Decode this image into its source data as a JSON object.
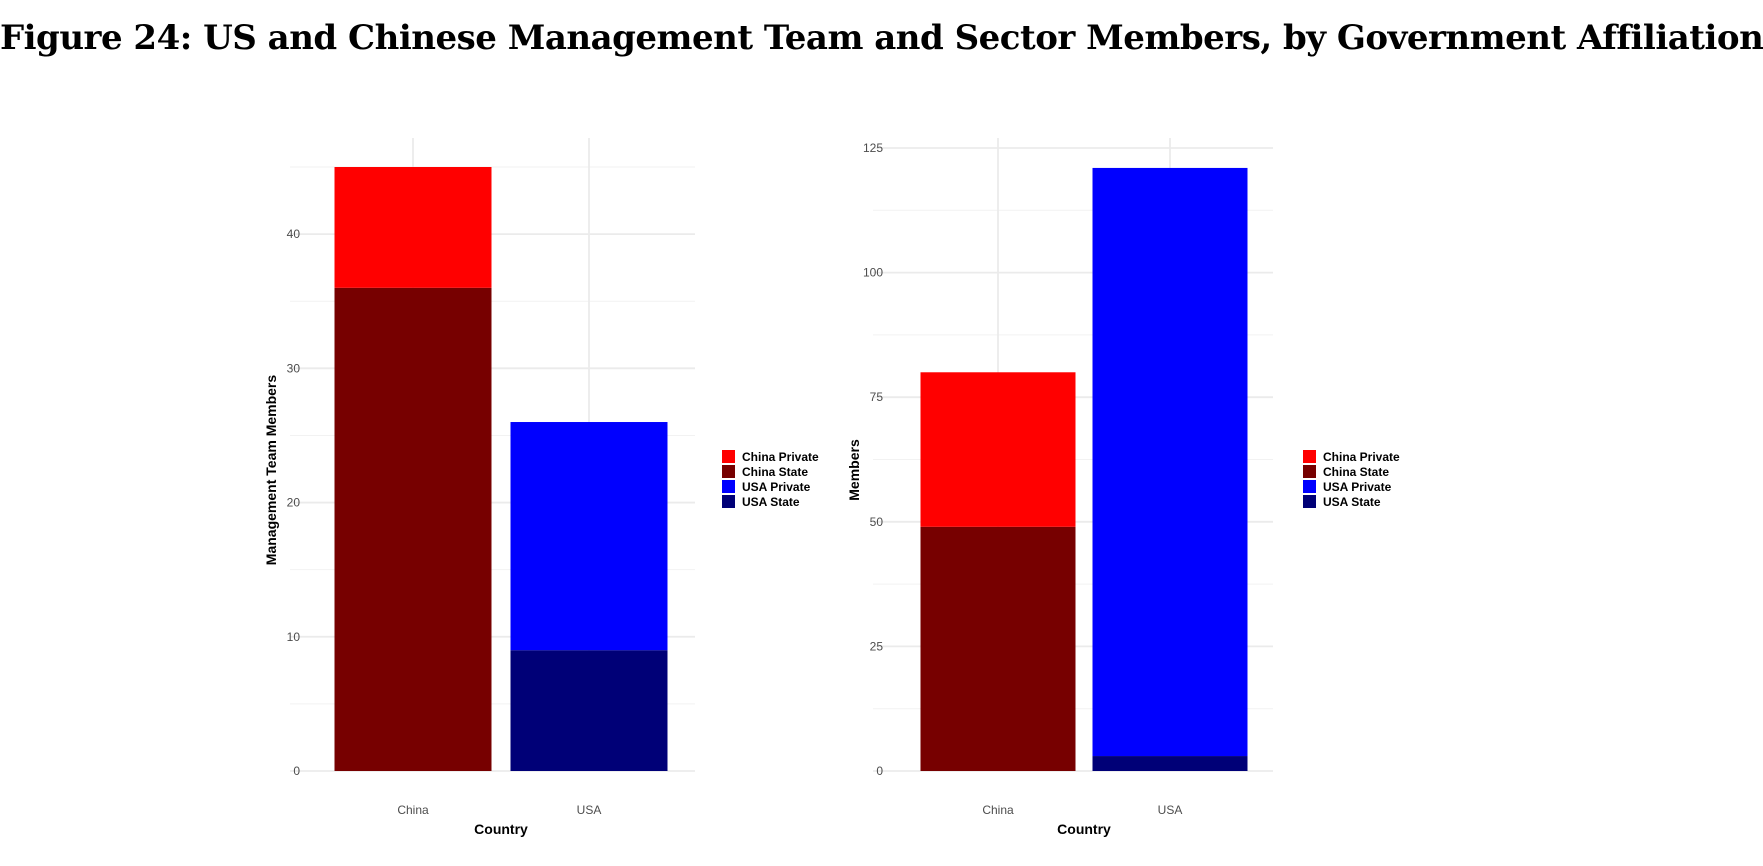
{
  "figure": {
    "title": "Figure 24: US and Chinese Management Team and Sector Members, by Government Affiliation"
  },
  "chart_data": [
    {
      "type": "bar",
      "stacked": true,
      "categories": [
        "China",
        "USA"
      ],
      "series": [
        {
          "name": "China State",
          "color": "#770000",
          "values": [
            36,
            0
          ]
        },
        {
          "name": "China Private",
          "color": "#ff0000",
          "values": [
            9,
            0
          ]
        },
        {
          "name": "USA State",
          "color": "#000077",
          "values": [
            0,
            9
          ]
        },
        {
          "name": "USA Private",
          "color": "#0000ff",
          "values": [
            0,
            17
          ]
        }
      ],
      "xlabel": "Country",
      "ylabel": "Management Team Members",
      "ylim": [
        0,
        45
      ],
      "yticks": [
        0,
        10,
        20,
        30,
        40
      ],
      "legend": [
        {
          "name": "China Private",
          "color": "#ff0000"
        },
        {
          "name": "China State",
          "color": "#770000"
        },
        {
          "name": "USA Private",
          "color": "#0000ff"
        },
        {
          "name": "USA State",
          "color": "#000077"
        }
      ],
      "legend_position": "right",
      "grid": true
    },
    {
      "type": "bar",
      "stacked": true,
      "categories": [
        "China",
        "USA"
      ],
      "series": [
        {
          "name": "China State",
          "color": "#770000",
          "values": [
            49,
            0
          ]
        },
        {
          "name": "China Private",
          "color": "#ff0000",
          "values": [
            31,
            0
          ]
        },
        {
          "name": "USA State",
          "color": "#000077",
          "values": [
            0,
            3
          ]
        },
        {
          "name": "USA Private",
          "color": "#0000ff",
          "values": [
            0,
            118
          ]
        }
      ],
      "xlabel": "Country",
      "ylabel": "Members",
      "ylim": [
        0,
        125
      ],
      "yticks": [
        0,
        25,
        50,
        75,
        100,
        125
      ],
      "legend": [
        {
          "name": "China Private",
          "color": "#ff0000"
        },
        {
          "name": "China State",
          "color": "#770000"
        },
        {
          "name": "USA Private",
          "color": "#0000ff"
        },
        {
          "name": "USA State",
          "color": "#000077"
        }
      ],
      "legend_position": "right",
      "grid": true
    }
  ]
}
